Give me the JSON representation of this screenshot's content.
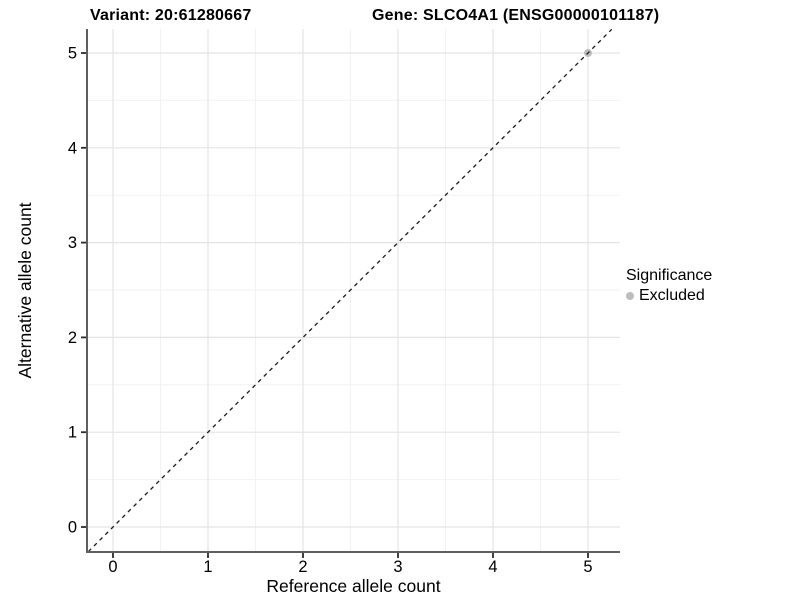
{
  "header": {
    "variant_title": "Variant: 20:61280667",
    "gene_title": "Gene: SLCO4A1 (ENSG00000101187)"
  },
  "legend": {
    "title": "Significance",
    "entries": [
      {
        "label": "Excluded",
        "color": "#bdbdbd"
      }
    ]
  },
  "chart_data": {
    "type": "scatter",
    "title": "Variant: 20:61280667   Gene: SLCO4A1 (ENSG00000101187)",
    "xlabel": "Reference allele count",
    "ylabel": "Alternative allele count",
    "xlim": [
      -0.27,
      5.34
    ],
    "ylim": [
      -0.26,
      5.25
    ],
    "x_ticks": [
      0,
      1,
      2,
      3,
      4,
      5
    ],
    "y_ticks": [
      0,
      1,
      2,
      3,
      4,
      5
    ],
    "minor_ticks": [
      0.5,
      1.5,
      2.5,
      3.5,
      4.5
    ],
    "grid": {
      "show": true,
      "major_color": "#e4e4e4",
      "minor_color": "#f2f2f2"
    },
    "axis_color": "#5f5f5f",
    "tick_color": "#2b2b2b",
    "text_color": "#000000",
    "reference_line": {
      "slope": 1,
      "intercept": 0,
      "style": "dashed",
      "color": "#1a1a1a"
    },
    "series": [
      {
        "name": "Excluded",
        "color": "#bdbdbd",
        "points": [
          {
            "x": 5,
            "y": 5
          }
        ]
      }
    ],
    "legend_position": "right"
  }
}
